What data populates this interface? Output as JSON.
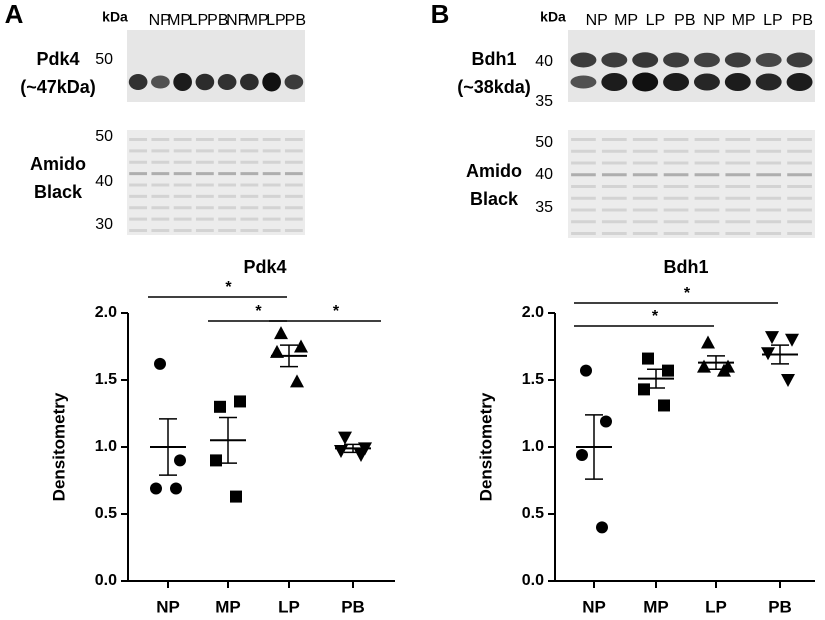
{
  "panels": [
    {
      "label": "A",
      "blot": {
        "unit": "kDa",
        "lanes": [
          "NP",
          "MP",
          "LP",
          "PB",
          "NP",
          "MP",
          "LP",
          "PB"
        ],
        "protein": "Pdk4",
        "size": "(~47kDa)",
        "markers": [
          50
        ]
      },
      "stain": {
        "name": [
          "Amido",
          "Black"
        ],
        "markers": [
          50,
          40,
          30
        ]
      }
    },
    {
      "label": "B",
      "blot": {
        "unit": "kDa",
        "lanes": [
          "NP",
          "MP",
          "LP",
          "PB",
          "NP",
          "MP",
          "LP",
          "PB"
        ],
        "protein": "Bdh1",
        "size": "(~38kda)",
        "markers": [
          40,
          35
        ]
      },
      "stain": {
        "name": [
          "Amido",
          "Black"
        ],
        "markers": [
          50,
          40,
          35
        ]
      }
    }
  ],
  "chart_data": [
    {
      "type": "dot-plot",
      "title": "Pdk4",
      "y_label": "Densitometry",
      "categories": [
        "NP",
        "MP",
        "LP",
        "PB"
      ],
      "markers": [
        "circle",
        "square",
        "triangle-up",
        "triangle-down"
      ],
      "color": "#000000",
      "points": [
        [
          1.62,
          0.9,
          0.69,
          0.69
        ],
        [
          1.3,
          1.34,
          0.9,
          0.63
        ],
        [
          1.85,
          1.75,
          1.71,
          1.49
        ],
        [
          1.07,
          0.99,
          0.97,
          0.94
        ]
      ],
      "means": [
        1.0,
        1.05,
        1.68,
        0.99
      ],
      "sems": [
        0.21,
        0.17,
        0.08,
        0.03
      ],
      "ylim": [
        0,
        2
      ],
      "yticks": [
        {
          "value": 0,
          "label": "0.0"
        },
        {
          "value": 0.5,
          "label": "0.5"
        },
        {
          "value": 1,
          "label": "1.0"
        },
        {
          "value": 1.5,
          "label": "1.5"
        },
        {
          "value": 2,
          "label": "2.0"
        }
      ],
      "significance": [
        {
          "groups": [
            "NP",
            "LP"
          ],
          "label": "*"
        },
        {
          "groups": [
            "MP",
            "LP"
          ],
          "label": "*"
        },
        {
          "groups": [
            "LP",
            "PB"
          ],
          "label": "*"
        }
      ]
    },
    {
      "type": "dot-plot",
      "title": "Bdh1",
      "y_label": "Densitometry",
      "categories": [
        "NP",
        "MP",
        "LP",
        "PB"
      ],
      "markers": [
        "circle",
        "square",
        "triangle-up",
        "triangle-down"
      ],
      "color": "#000000",
      "points": [
        [
          1.57,
          1.19,
          0.94,
          0.4
        ],
        [
          1.66,
          1.57,
          1.43,
          1.31
        ],
        [
          1.78,
          1.6,
          1.6,
          1.57
        ],
        [
          1.82,
          1.8,
          1.7,
          1.5
        ]
      ],
      "means": [
        1.0,
        1.51,
        1.63,
        1.69
      ],
      "sems": [
        0.24,
        0.07,
        0.05,
        0.07
      ],
      "ylim": [
        0,
        2
      ],
      "yticks": [
        {
          "value": 0,
          "label": "0.0"
        },
        {
          "value": 0.5,
          "label": "0.5"
        },
        {
          "value": 1,
          "label": "1.0"
        },
        {
          "value": 1.5,
          "label": "1.5"
        },
        {
          "value": 2,
          "label": "2.0"
        }
      ],
      "significance": [
        {
          "groups": [
            "NP",
            "PB"
          ],
          "label": "*"
        },
        {
          "groups": [
            "NP",
            "LP"
          ],
          "label": "*"
        }
      ]
    }
  ]
}
